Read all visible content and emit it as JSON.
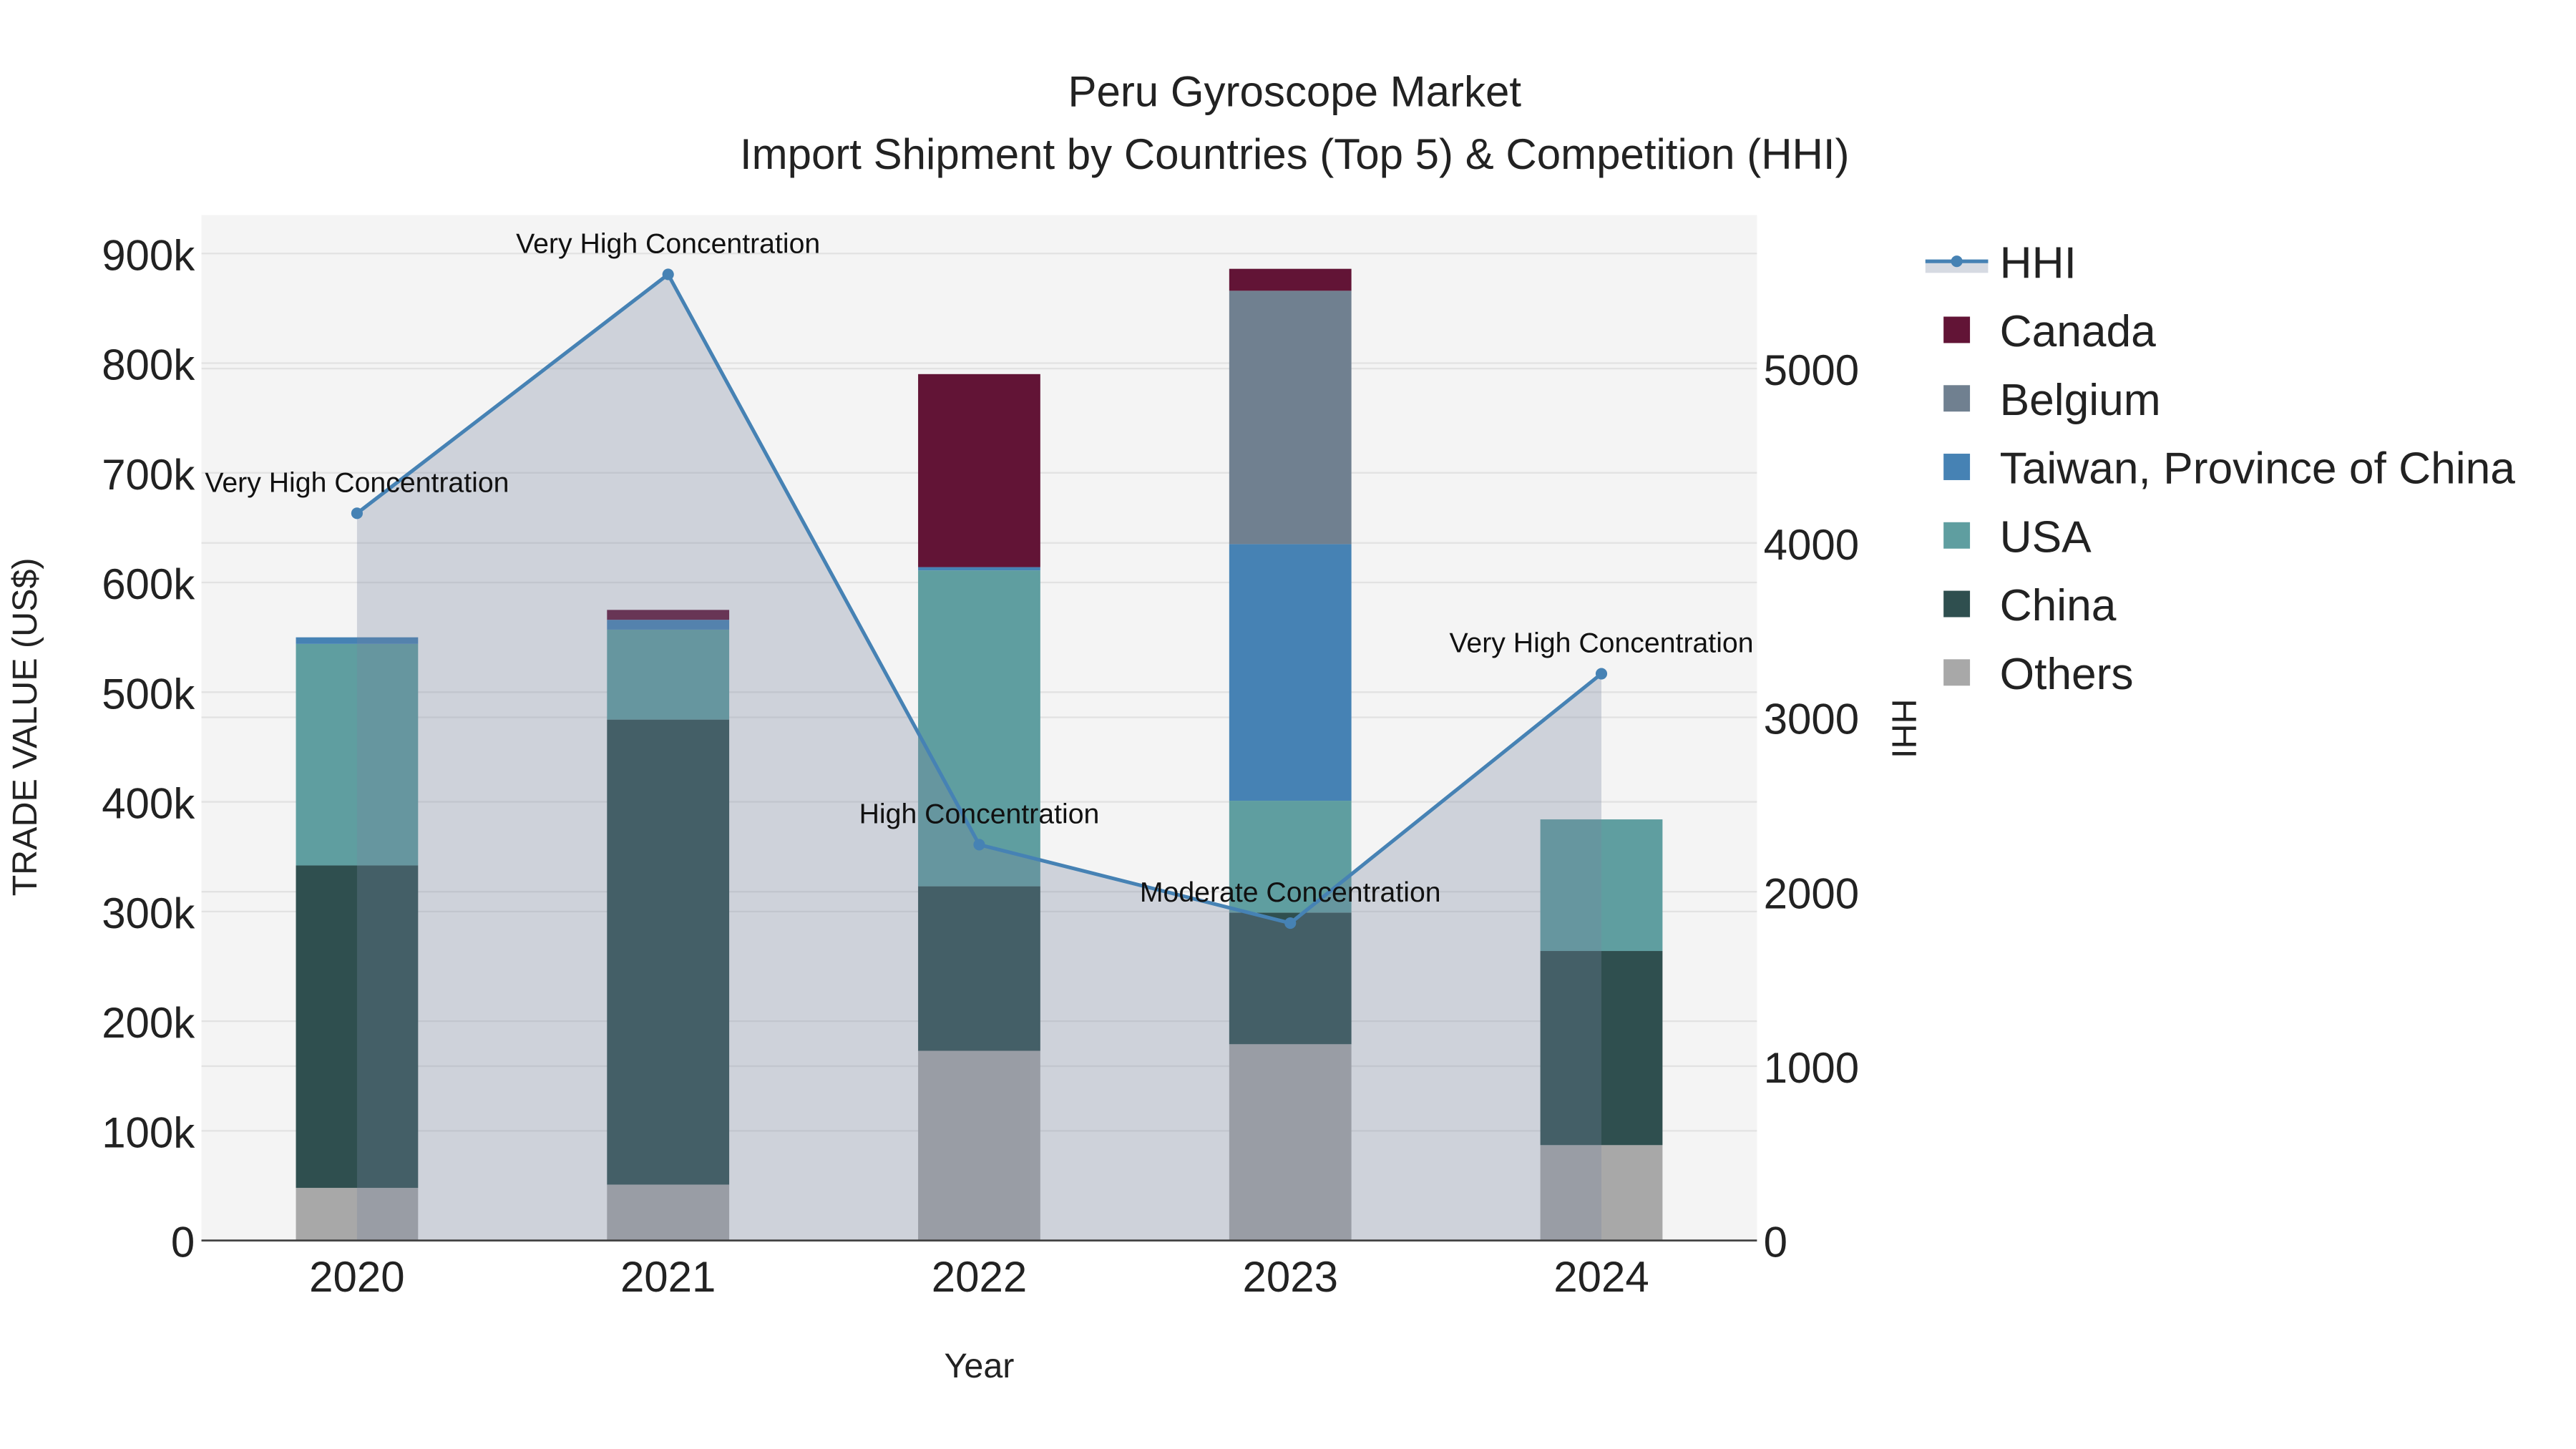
{
  "chart_data": {
    "type": "bar",
    "title": "Peru Gyroscope Market",
    "subtitle": "Import Shipment by Countries (Top 5) & Competition (HHI)",
    "xlabel": "Year",
    "ylabel": "TRADE VALUE (US$)",
    "y2label": "HHI",
    "categories": [
      "2020",
      "2021",
      "2022",
      "2023",
      "2024"
    ],
    "ylim": [
      0,
      935000
    ],
    "y2lim": [
      0,
      5880
    ],
    "yticks": [
      0,
      100000,
      200000,
      300000,
      400000,
      500000,
      600000,
      700000,
      800000,
      900000
    ],
    "ytick_labels": [
      "0",
      "100k",
      "200k",
      "300k",
      "400k",
      "500k",
      "600k",
      "700k",
      "800k",
      "900k"
    ],
    "y2ticks": [
      0,
      1000,
      2000,
      3000,
      4000,
      5000
    ],
    "y2tick_labels": [
      "0",
      "1000",
      "2000",
      "3000",
      "4000",
      "5000"
    ],
    "grid": true,
    "legend_placement": "right",
    "series": [
      {
        "name": "Others",
        "color": "#a8a8a8",
        "values": [
          48000,
          51000,
          173000,
          179000,
          87000
        ]
      },
      {
        "name": "China",
        "color": "#2f4f4f",
        "values": [
          294000,
          424000,
          150000,
          120000,
          177000
        ]
      },
      {
        "name": "USA",
        "color": "#5f9ea0",
        "values": [
          202000,
          82000,
          288000,
          102000,
          120000
        ]
      },
      {
        "name": "Taiwan, Province of China",
        "color": "#4682b4",
        "values": [
          6000,
          9000,
          3000,
          234000,
          0
        ]
      },
      {
        "name": "Belgium",
        "color": "#708090",
        "values": [
          0,
          0,
          0,
          231000,
          0
        ]
      },
      {
        "name": "Canada",
        "color": "#621436",
        "values": [
          0,
          9000,
          176000,
          20000,
          0
        ]
      }
    ],
    "line": {
      "name": "HHI",
      "color": "#4682b4",
      "values": [
        4170,
        5540,
        2270,
        1820,
        3250
      ],
      "annotations": [
        "Very High Concentration",
        "Very High Concentration",
        "High Concentration",
        "Moderate Concentration",
        "Very High Concentration"
      ]
    },
    "legend_order": [
      "HHI",
      "Canada",
      "Belgium",
      "Taiwan, Province of China",
      "USA",
      "China",
      "Others"
    ]
  }
}
